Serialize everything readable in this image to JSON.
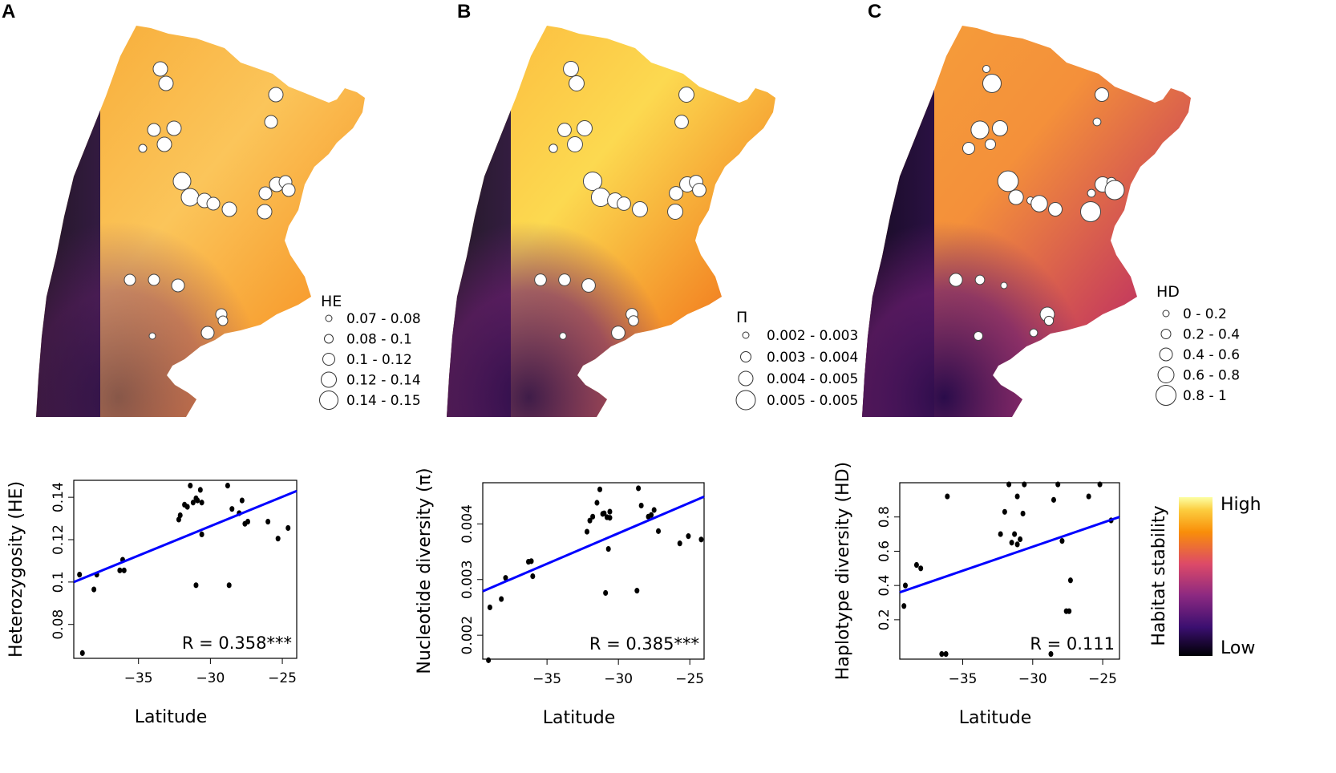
{
  "figure": {
    "panel_labels": [
      "A",
      "B",
      "C"
    ],
    "colorbar": {
      "title": "Habitat stability",
      "high_label": "High",
      "low_label": "Low",
      "stops": [
        "#000004",
        "#3b0f70",
        "#8c2981",
        "#dd4a68",
        "#f98e09",
        "#fccd3f",
        "#fcffa4"
      ]
    },
    "map_colors": {
      "background": "#ffffff",
      "circle_fill": "#ffffff",
      "circle_stroke": "#333333"
    }
  },
  "maps": [
    {
      "legend_title": "HE",
      "legend_items": [
        "0.07 - 0.08",
        "0.08 - 0.1",
        "0.1 - 0.12",
        "0.12 - 0.14",
        "0.14 - 0.15"
      ]
    },
    {
      "legend_title": "Π",
      "legend_items": [
        "0.002 - 0.003",
        "0.003 - 0.004",
        "0.004 - 0.005",
        "0.005 - 0.005"
      ]
    },
    {
      "legend_title": "HD",
      "legend_items": [
        "0 - 0.2",
        "0.2 - 0.4",
        "0.4 - 0.6",
        "0.6 - 0.8",
        "0.8 - 1"
      ]
    }
  ],
  "chart_data": [
    {
      "type": "scatter",
      "title": "",
      "xlabel": "Latitude",
      "ylabel": "Heterozygosity (HE)",
      "xlim": [
        -39.5,
        -24
      ],
      "ylim": [
        0.064,
        0.148
      ],
      "xticks": [
        -35,
        -30,
        -25
      ],
      "xtick_labels": [
        "−35",
        "−30",
        "−25"
      ],
      "yticks": [
        0.08,
        0.1,
        0.12,
        0.14
      ],
      "ytick_labels": [
        "0.08",
        "0.1",
        "0.12",
        "0.14"
      ],
      "x": [
        -38.9,
        -38.1,
        -39.1,
        -37.9,
        -36.3,
        -36.0,
        -36.1,
        -32.2,
        -32.1,
        -31.8,
        -31.6,
        -31.4,
        -31.2,
        -31.0,
        -30.9,
        -30.7,
        -30.6,
        -30.6,
        -31.0,
        -28.8,
        -28.5,
        -28.0,
        -27.8,
        -27.6,
        -27.4,
        -28.7,
        -26.0,
        -25.3,
        -24.6
      ],
      "y": [
        0.0665,
        0.0965,
        0.1035,
        0.1035,
        0.1055,
        0.1055,
        0.1105,
        0.1295,
        0.1315,
        0.1365,
        0.1355,
        0.1455,
        0.1375,
        0.1395,
        0.1385,
        0.1435,
        0.1375,
        0.1225,
        0.0985,
        0.1455,
        0.1345,
        0.1325,
        0.1385,
        0.1275,
        0.1285,
        0.0985,
        0.1285,
        0.1205,
        0.1255
      ],
      "fit": {
        "x": [
          -39.5,
          -24
        ],
        "y": [
          0.1,
          0.143
        ],
        "color": "#0000ff"
      },
      "annotation": "R = 0.358***"
    },
    {
      "type": "scatter",
      "title": "",
      "xlabel": "Latitude",
      "ylabel": "Nucleotide diversity (π)",
      "xlim": [
        -39.5,
        -24
      ],
      "ylim": [
        0.00157,
        0.00474
      ],
      "xticks": [
        -35,
        -30,
        -25
      ],
      "xtick_labels": [
        "−35",
        "−30",
        "−25"
      ],
      "yticks": [
        0.002,
        0.003,
        0.004
      ],
      "ytick_labels": [
        "0.002",
        "0.003",
        "0.004"
      ],
      "x": [
        -39.1,
        -39.0,
        -38.2,
        -37.9,
        -36.3,
        -36.0,
        -36.1,
        -32.2,
        -32.0,
        -31.8,
        -31.5,
        -31.3,
        -31.1,
        -31.0,
        -30.8,
        -30.6,
        -30.6,
        -30.7,
        -30.9,
        -28.6,
        -28.4,
        -27.9,
        -27.7,
        -27.5,
        -27.2,
        -28.7,
        -25.7,
        -25.1,
        -24.2
      ],
      "y": [
        0.00155,
        0.0025,
        0.00265,
        0.00303,
        0.00332,
        0.00306,
        0.00333,
        0.00386,
        0.00406,
        0.00413,
        0.00438,
        0.00462,
        0.00418,
        0.00419,
        0.00412,
        0.00411,
        0.00422,
        0.00355,
        0.00276,
        0.00464,
        0.00433,
        0.00413,
        0.00416,
        0.00425,
        0.00387,
        0.0028,
        0.00365,
        0.00378,
        0.00372
      ],
      "fit": {
        "x": [
          -39.5,
          -24
        ],
        "y": [
          0.00279,
          0.00449
        ],
        "color": "#0000ff"
      },
      "annotation": "R = 0.385***"
    },
    {
      "type": "scatter",
      "title": "",
      "xlabel": "Latitude",
      "ylabel": "Haplotype diversity (HD)",
      "xlim": [
        -39.5,
        -23.8
      ],
      "ylim": [
        -0.03,
        1.0
      ],
      "xticks": [
        -35,
        -30,
        -25
      ],
      "xtick_labels": [
        "−35",
        "−30",
        "−25"
      ],
      "yticks": [
        0.2,
        0.4,
        0.6,
        0.8
      ],
      "ytick_labels": [
        "0.2",
        "0.4",
        "0.6",
        "0.8"
      ],
      "x": [
        -39.2,
        -39.1,
        -38.3,
        -38.0,
        -36.5,
        -36.2,
        -36.1,
        -32.3,
        -32.0,
        -31.7,
        -31.5,
        -31.3,
        -31.1,
        -30.9,
        -30.7,
        -30.6,
        -31.1,
        -28.5,
        -28.7,
        -27.9,
        -27.6,
        -27.4,
        -27.3,
        -28.2,
        -26.0,
        -25.2,
        -24.4
      ],
      "y": [
        0.28,
        0.4,
        0.52,
        0.5,
        0.0,
        0.0,
        0.92,
        0.7,
        0.83,
        0.99,
        0.65,
        0.7,
        0.92,
        0.67,
        0.82,
        0.99,
        0.64,
        0.9,
        0.0,
        0.66,
        0.25,
        0.25,
        0.43,
        0.99,
        0.92,
        0.99,
        0.78
      ],
      "fit": {
        "x": [
          -39.5,
          -23.8
        ],
        "y": [
          0.36,
          0.8
        ],
        "color": "#0000ff"
      },
      "annotation": "R = 0.111"
    }
  ]
}
